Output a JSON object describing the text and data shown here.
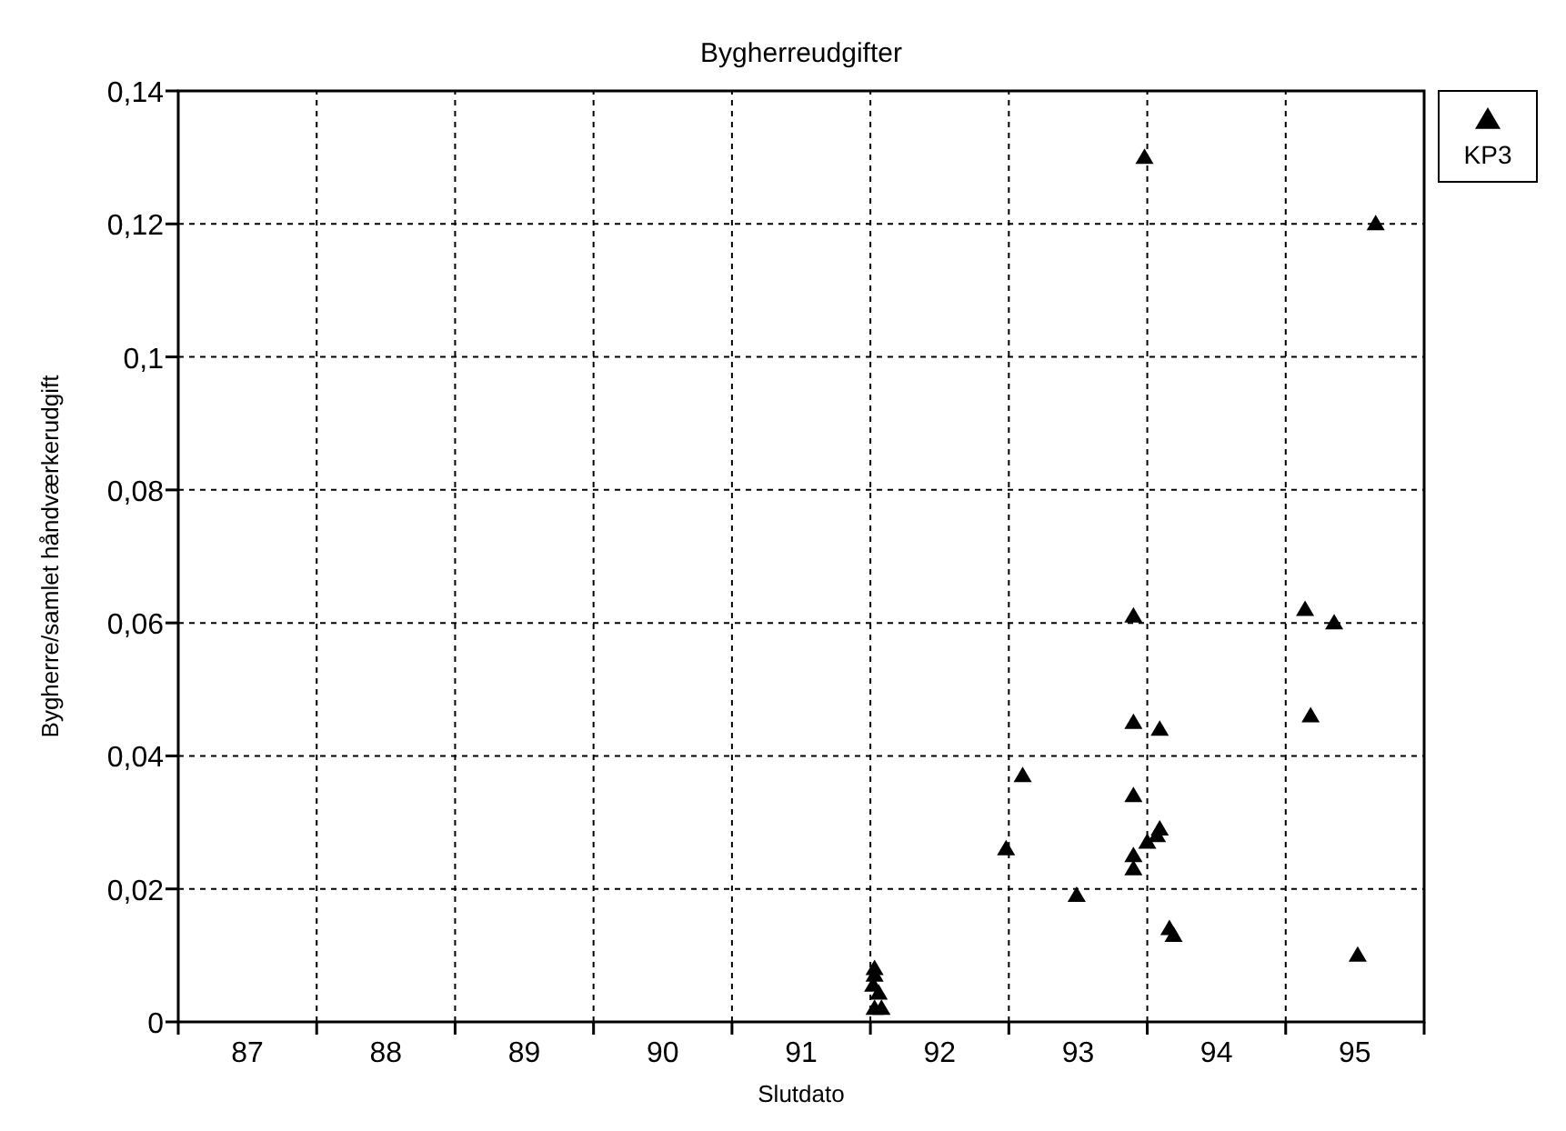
{
  "chart_data": {
    "type": "scatter",
    "title": "Bygherreudgifter",
    "xlabel": "Slutdato",
    "ylabel": "Bygherre/samlet håndværkerudgift",
    "xlim": [
      87,
      96
    ],
    "xticks": [
      {
        "value": 87,
        "label": null
      },
      {
        "value": 87.5,
        "label": "87"
      },
      {
        "value": 88,
        "label": null
      },
      {
        "value": 88.5,
        "label": "88"
      },
      {
        "value": 89,
        "label": null
      },
      {
        "value": 89.5,
        "label": "89"
      },
      {
        "value": 90,
        "label": null
      },
      {
        "value": 90.5,
        "label": "90"
      },
      {
        "value": 91,
        "label": null
      },
      {
        "value": 91.5,
        "label": "91"
      },
      {
        "value": 92,
        "label": null
      },
      {
        "value": 92.5,
        "label": "92"
      },
      {
        "value": 93,
        "label": null
      },
      {
        "value": 93.5,
        "label": "93"
      },
      {
        "value": 94,
        "label": null
      },
      {
        "value": 94.5,
        "label": "94"
      },
      {
        "value": 95,
        "label": null
      },
      {
        "value": 95.5,
        "label": "95"
      },
      {
        "value": 96,
        "label": null
      }
    ],
    "ylim": [
      0,
      0.14
    ],
    "yticks": [
      {
        "value": 0,
        "label": "0"
      },
      {
        "value": 0.02,
        "label": "0,02"
      },
      {
        "value": 0.04,
        "label": "0,04"
      },
      {
        "value": 0.06,
        "label": "0,06"
      },
      {
        "value": 0.08,
        "label": "0,08"
      },
      {
        "value": 0.1,
        "label": "0,1"
      },
      {
        "value": 0.12,
        "label": "0,12"
      },
      {
        "value": 0.14,
        "label": "0,14"
      }
    ],
    "grid": true,
    "legend": "top right",
    "marker": "triangle",
    "series": [
      {
        "name": "KP3",
        "color": "#000000",
        "x": [
          93.9,
          95.14,
          95.35,
          93.9,
          94.09,
          95.18,
          93.1,
          93.9,
          94.09,
          94.07,
          94.0,
          92.98,
          93.9,
          93.9,
          93.49,
          94.16,
          94.19,
          95.52,
          92.03,
          92.03,
          92.02,
          92.06,
          92.03,
          92.08,
          93.98,
          95.65
        ],
        "values": [
          0.061,
          0.062,
          0.06,
          0.045,
          0.044,
          0.046,
          0.037,
          0.034,
          0.029,
          0.028,
          0.027,
          0.026,
          0.025,
          0.023,
          0.019,
          0.014,
          0.013,
          0.01,
          0.008,
          0.007,
          0.0055,
          0.0043,
          0.002,
          0.002,
          0.13,
          0.12
        ]
      }
    ]
  }
}
